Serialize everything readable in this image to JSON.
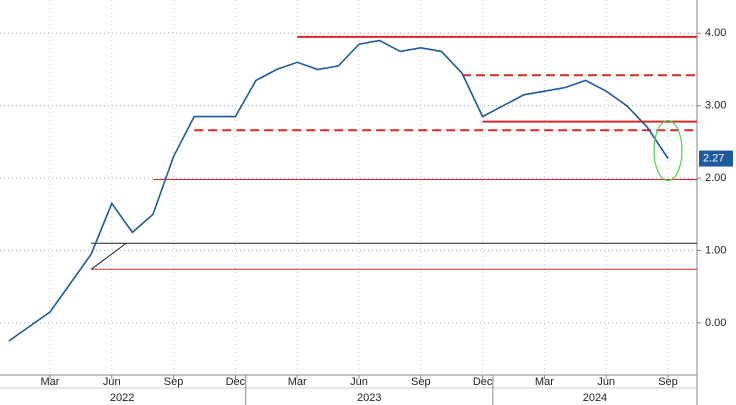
{
  "chart_data": {
    "type": "line",
    "x": [
      "2022-01",
      "2022-02",
      "2022-03",
      "2022-04",
      "2022-05",
      "2022-06",
      "2022-07",
      "2022-08",
      "2022-09",
      "2022-10",
      "2022-11",
      "2022-12",
      "2023-01",
      "2023-02",
      "2023-03",
      "2023-04",
      "2023-05",
      "2023-06",
      "2023-07",
      "2023-08",
      "2023-09",
      "2023-10",
      "2023-11",
      "2023-12",
      "2024-01",
      "2024-02",
      "2024-03",
      "2024-04",
      "2024-05",
      "2024-06",
      "2024-07",
      "2024-08",
      "2024-09"
    ],
    "series": [
      {
        "color": "#1f5a9e",
        "values": [
          -0.25,
          -0.05,
          0.15,
          0.55,
          0.95,
          1.65,
          1.25,
          1.5,
          2.3,
          2.85,
          2.85,
          2.85,
          3.35,
          3.5,
          3.6,
          3.5,
          3.55,
          3.85,
          3.9,
          3.75,
          3.8,
          3.75,
          3.45,
          2.85,
          3.0,
          3.15,
          3.2,
          3.25,
          3.35,
          3.2,
          3.0,
          2.7,
          2.27
        ]
      }
    ],
    "last_value": 2.27,
    "ylim": [
      -0.72,
      4.46
    ],
    "yticks": [
      {
        "value": 0,
        "label": "0.00"
      },
      {
        "value": 1,
        "label": "1.00"
      },
      {
        "value": 2,
        "label": "2.00"
      },
      {
        "value": 3,
        "label": "3.00"
      },
      {
        "value": 4,
        "label": "4.00"
      }
    ],
    "xticks": [
      {
        "value": "2022-03",
        "label": "Mar"
      },
      {
        "value": "2022-06",
        "label": "Jun"
      },
      {
        "value": "2022-09",
        "label": "Sep"
      },
      {
        "value": "2022-12",
        "label": "Dec"
      },
      {
        "value": "2023-03",
        "label": "Mar"
      },
      {
        "value": "2023-06",
        "label": "Jun"
      },
      {
        "value": "2023-09",
        "label": "Sep"
      },
      {
        "value": "2023-12",
        "label": "Dec"
      },
      {
        "value": "2024-03",
        "label": "Mar"
      },
      {
        "value": "2024-06",
        "label": "Jun"
      },
      {
        "value": "2024-09",
        "label": "Sep"
      }
    ],
    "years": [
      "2022",
      "2023",
      "2024"
    ],
    "grid": true,
    "levels": [
      {
        "value": 3.95,
        "start": "2023-03",
        "color": "#d42a2a",
        "style": "solid"
      },
      {
        "value": 3.42,
        "start": "2023-11",
        "color": "#d42a2a",
        "style": "dashed"
      },
      {
        "value": 2.78,
        "start": "2023-12",
        "color": "#d42a2a",
        "style": "solid"
      },
      {
        "value": 2.66,
        "start": "2022-10",
        "color": "#d42a2a",
        "style": "dashed"
      },
      {
        "value": 1.98,
        "start": "2022-08",
        "color": "#d42a2a",
        "style": "thin"
      },
      {
        "value": 1.1,
        "start": "2022-05",
        "color": "#222222",
        "style": "thin"
      },
      {
        "value": 0.74,
        "start": "2022-05",
        "color": "#d42a2a",
        "style": "thin"
      }
    ]
  }
}
